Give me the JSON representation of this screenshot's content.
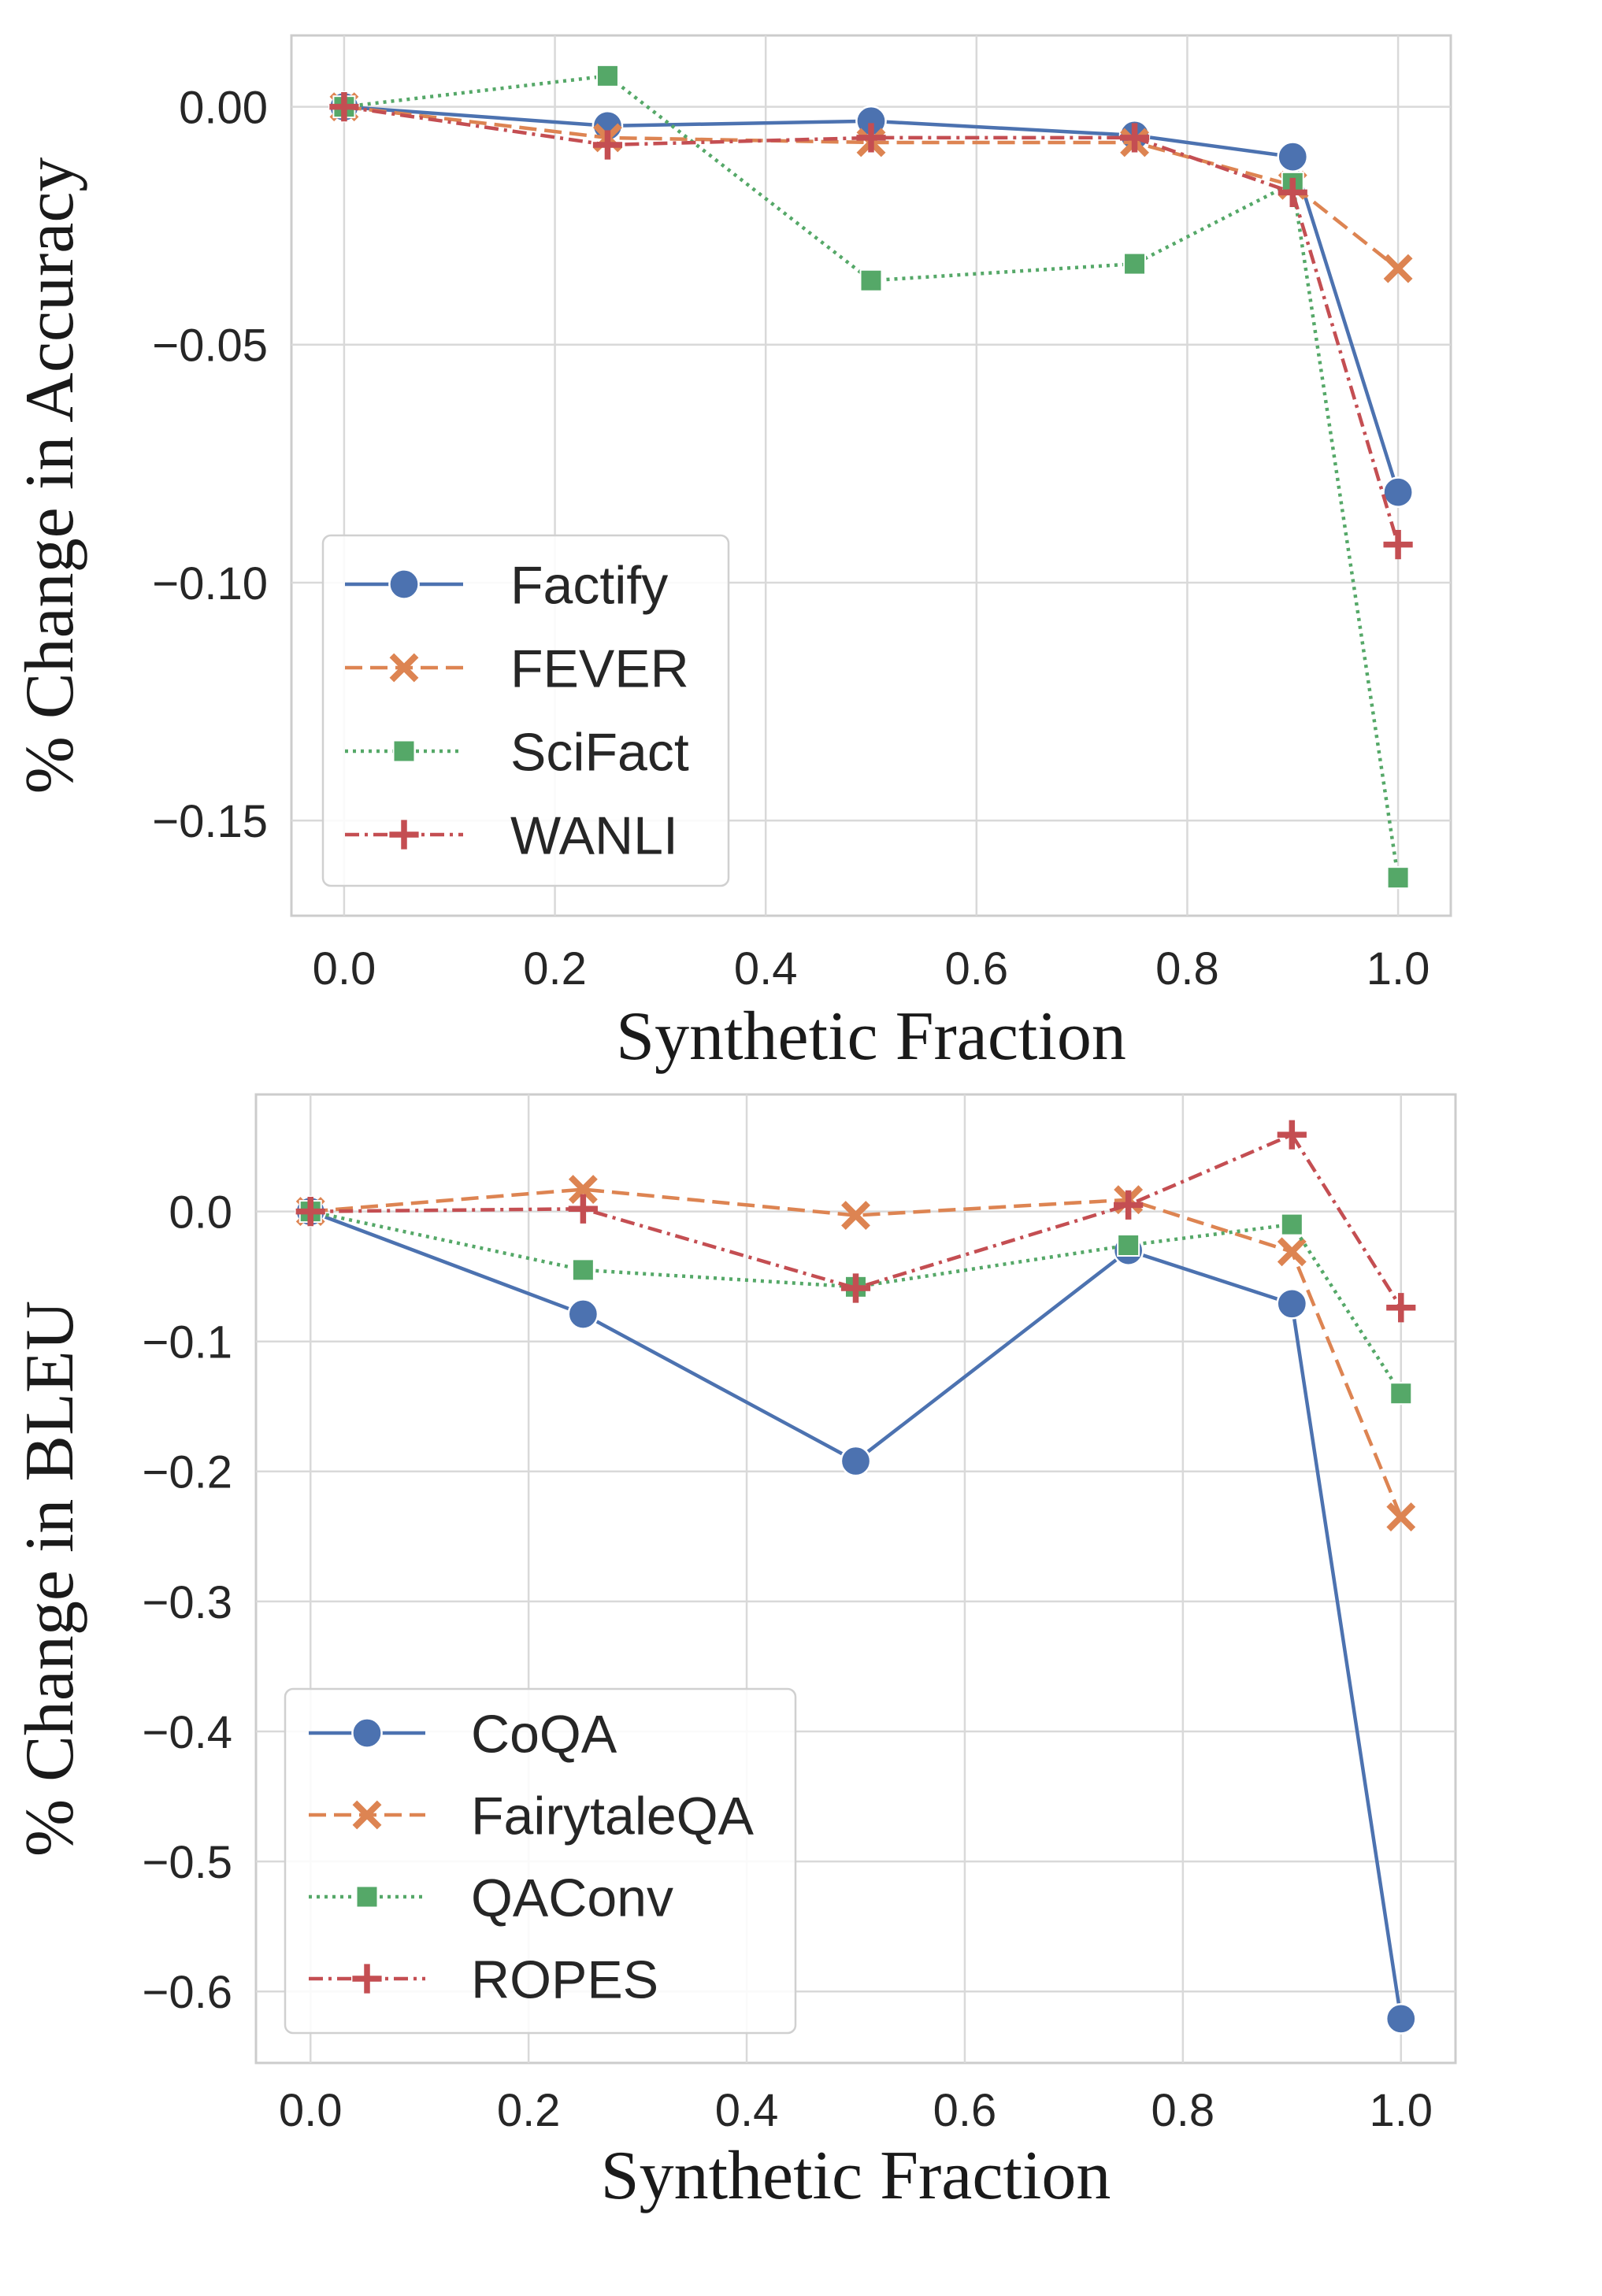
{
  "chart_data": [
    {
      "type": "line",
      "title": "",
      "xlabel": "Synthetic Fraction",
      "ylabel": "% Change in Accuracy",
      "xlim": [
        -0.05,
        1.05
      ],
      "ylim": [
        -0.17,
        0.015
      ],
      "x": [
        0.0,
        0.25,
        0.5,
        0.75,
        0.9,
        1.0
      ],
      "xticks": [
        0.0,
        0.2,
        0.4,
        0.6,
        0.8,
        1.0
      ],
      "xtick_labels": [
        "0.0",
        "0.2",
        "0.4",
        "0.6",
        "0.8",
        "1.0"
      ],
      "yticks": [
        0.0,
        -0.05,
        -0.1,
        -0.15
      ],
      "ytick_labels": [
        "0.00",
        "−0.05",
        "−0.10",
        "−0.15"
      ],
      "grid": true,
      "legend_position": "lower-left",
      "series": [
        {
          "name": "Factify",
          "marker": "circle",
          "dash": "solid",
          "color": "#4C72B0",
          "values": [
            0.0,
            -0.004,
            -0.003,
            -0.006,
            -0.0105,
            -0.081
          ]
        },
        {
          "name": "FEVER",
          "marker": "x",
          "dash": "dashed",
          "color": "#DD8452",
          "values": [
            0.0,
            -0.0065,
            -0.0075,
            -0.0075,
            -0.0165,
            -0.034
          ]
        },
        {
          "name": "SciFact",
          "marker": "square",
          "dash": "dotted",
          "color": "#55A868",
          "values": [
            0.0,
            0.0065,
            -0.0365,
            -0.033,
            -0.016,
            -0.162
          ]
        },
        {
          "name": "WANLI",
          "marker": "plus",
          "dash": "dashdot",
          "color": "#C44E52",
          "values": [
            0.0,
            -0.008,
            -0.0065,
            -0.0065,
            -0.018,
            -0.092
          ]
        }
      ]
    },
    {
      "type": "line",
      "title": "",
      "xlabel": "Synthetic Fraction",
      "ylabel": "% Change in BLEU",
      "xlim": [
        -0.05,
        1.05
      ],
      "ylim": [
        -0.655,
        0.09
      ],
      "x": [
        0.0,
        0.25,
        0.5,
        0.75,
        0.9,
        1.0
      ],
      "xticks": [
        0.0,
        0.2,
        0.4,
        0.6,
        0.8,
        1.0
      ],
      "xtick_labels": [
        "0.0",
        "0.2",
        "0.4",
        "0.6",
        "0.8",
        "1.0"
      ],
      "yticks": [
        0.0,
        -0.1,
        -0.2,
        -0.3,
        -0.4,
        -0.5,
        -0.6
      ],
      "ytick_labels": [
        "0.0",
        "−0.1",
        "−0.2",
        "−0.3",
        "−0.4",
        "−0.5",
        "−0.6"
      ],
      "grid": true,
      "legend_position": "lower-left",
      "series": [
        {
          "name": "CoQA",
          "marker": "circle",
          "dash": "solid",
          "color": "#4C72B0",
          "values": [
            0.0,
            -0.079,
            -0.192,
            -0.03,
            -0.071,
            -0.621
          ]
        },
        {
          "name": "FairytaleQA",
          "marker": "x",
          "dash": "dashed",
          "color": "#DD8452",
          "values": [
            0.0,
            0.017,
            -0.003,
            0.009,
            -0.031,
            -0.235
          ]
        },
        {
          "name": "QAConv",
          "marker": "square",
          "dash": "dotted",
          "color": "#55A868",
          "values": [
            0.0,
            -0.045,
            -0.058,
            -0.026,
            -0.01,
            -0.14
          ]
        },
        {
          "name": "ROPES",
          "marker": "plus",
          "dash": "dashdot",
          "color": "#C44E52",
          "values": [
            0.0,
            0.002,
            -0.059,
            0.005,
            0.059,
            -0.074
          ]
        }
      ]
    }
  ]
}
